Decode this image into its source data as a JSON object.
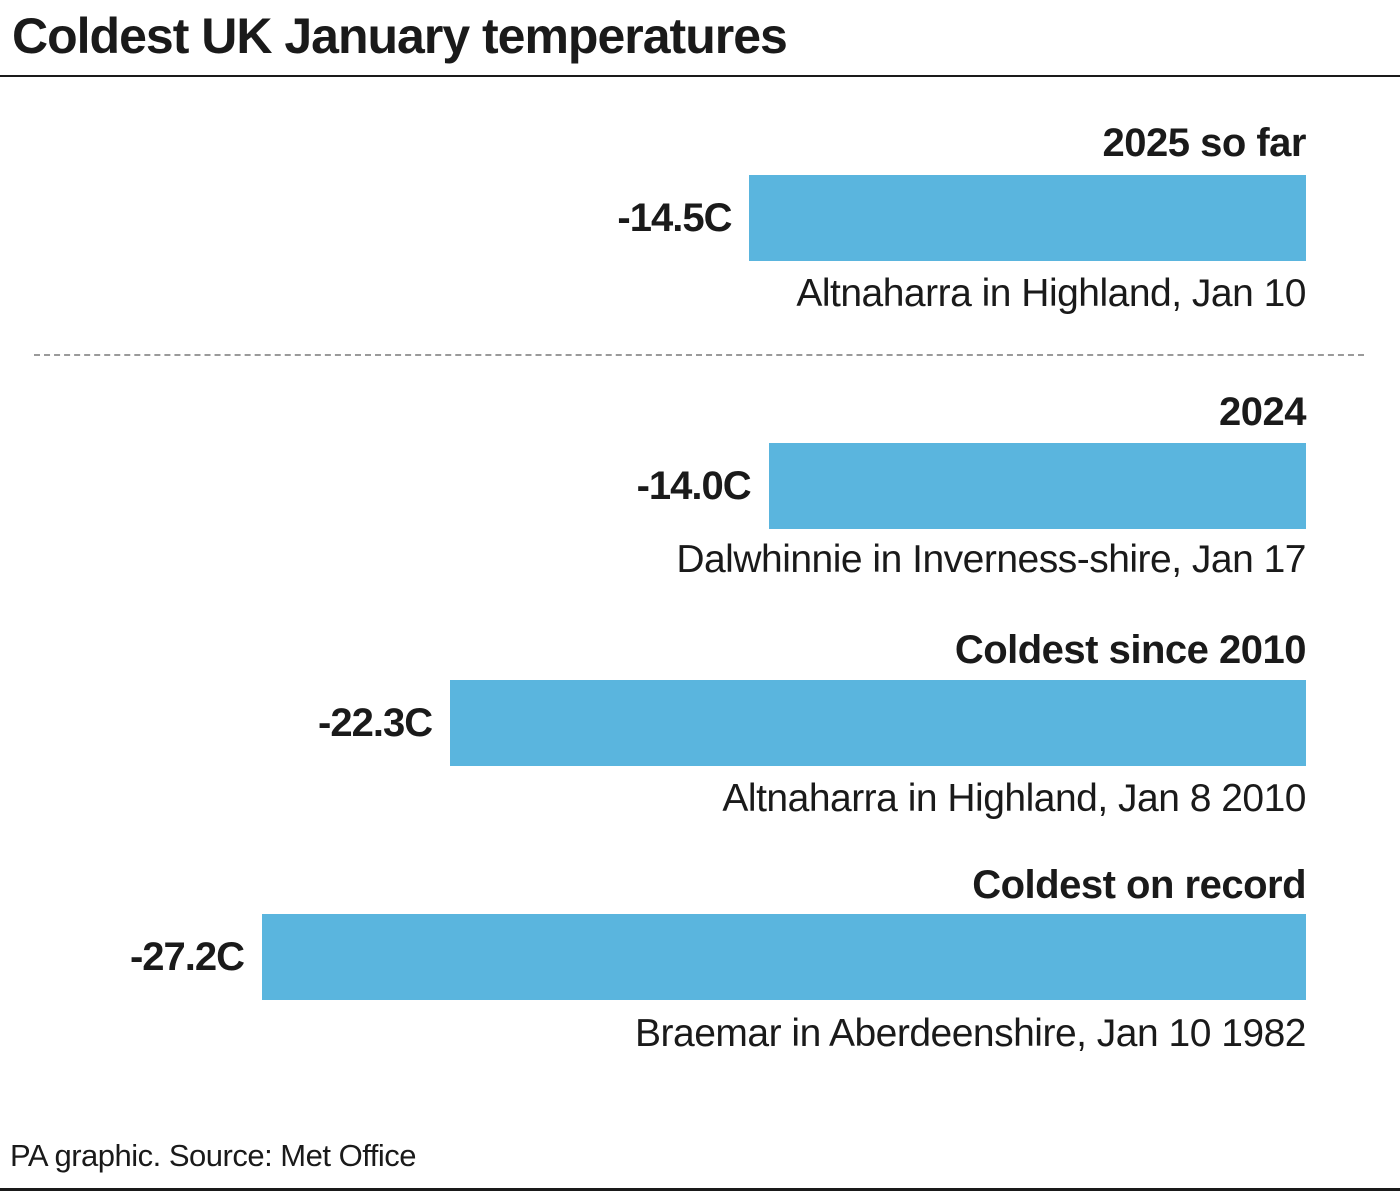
{
  "header": {
    "title": "Coldest UK January temperatures"
  },
  "footer": {
    "source": "PA graphic. Source: Met Office"
  },
  "colors": {
    "bar": "#5ab5de",
    "text": "#1a1a1a",
    "divider": "#9a9a9a"
  },
  "chart_data": {
    "type": "bar",
    "orientation": "horizontal",
    "title": "Coldest UK January temperatures",
    "unit": "C",
    "xlim": [
      0,
      -27.2
    ],
    "categories": [
      "2025 so far",
      "2024",
      "Coldest since 2010",
      "Coldest on record"
    ],
    "values": [
      -14.5,
      -14.0,
      -22.3,
      -27.2
    ],
    "value_labels": [
      "-14.5C",
      "-14.0C",
      "-22.3C",
      "-27.2C"
    ],
    "annotations": [
      "Altnaharra in Highland, Jan 10",
      "Dalwhinnie in Inverness-shire, Jan 17",
      "Altnaharra in Highland, Jan 8 2010",
      "Braemar in Aberdeenshire, Jan 10 1982"
    ]
  }
}
